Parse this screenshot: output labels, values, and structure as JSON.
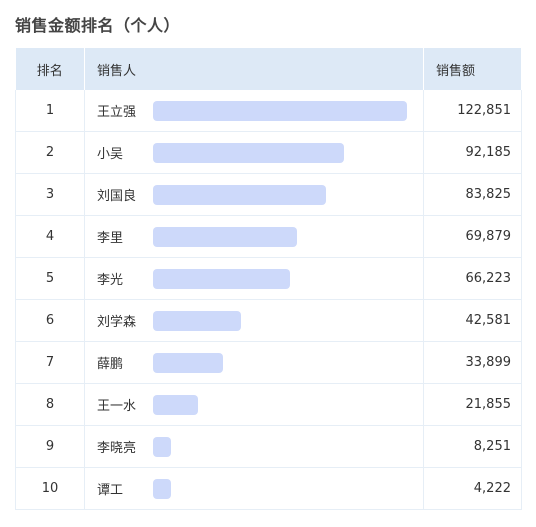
{
  "title": "销售金额排名（个人）",
  "header": {
    "rank_label": "排名",
    "person_label": "销售人",
    "amount_label": "销售额"
  },
  "colors": {
    "header_bg": "#dde9f6",
    "bar": "#cdd9fa",
    "border": "#e6eef6"
  },
  "rows": [
    {
      "rank": "1",
      "name": "王立强",
      "amount": "122,851",
      "value": 122851
    },
    {
      "rank": "2",
      "name": "小吴",
      "amount": "92,185",
      "value": 92185
    },
    {
      "rank": "3",
      "name": "刘国良",
      "amount": "83,825",
      "value": 83825
    },
    {
      "rank": "4",
      "name": "李里",
      "amount": "69,879",
      "value": 69879
    },
    {
      "rank": "5",
      "name": "李光",
      "amount": "66,223",
      "value": 66223
    },
    {
      "rank": "6",
      "name": "刘学森",
      "amount": "42,581",
      "value": 42581
    },
    {
      "rank": "7",
      "name": "薛鹏",
      "amount": "33,899",
      "value": 33899
    },
    {
      "rank": "8",
      "name": "王一水",
      "amount": "21,855",
      "value": 21855
    },
    {
      "rank": "9",
      "name": "李晓亮",
      "amount": "8,251",
      "value": 8251
    },
    {
      "rank": "10",
      "name": "谭工",
      "amount": "4,222",
      "value": 4222
    }
  ]
}
